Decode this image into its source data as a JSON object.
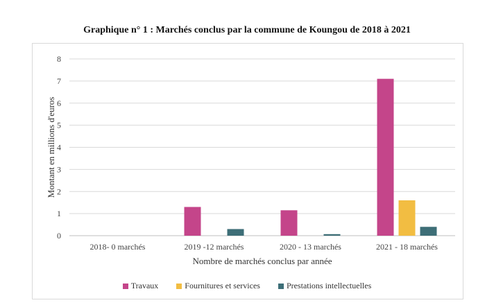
{
  "chart_data": {
    "type": "bar",
    "title": "Graphique n° 1 :  Marchés conclus par la commune de Koungou de 2018 à 2021",
    "xlabel": "Nombre de marchés conclus par année",
    "ylabel": "Montant en millions d'euros",
    "ylim": [
      0,
      8
    ],
    "yticks": [
      "0",
      "1",
      "2",
      "3",
      "4",
      "5",
      "6",
      "7",
      "8"
    ],
    "categories": [
      "2018- 0 marchés",
      "2019 -12 marchés",
      "2020 - 13 marchés",
      "2021 - 18 marchés"
    ],
    "series": [
      {
        "name": "Travaux",
        "color": "#c4458a",
        "values": [
          0,
          1.3,
          1.15,
          7.1
        ]
      },
      {
        "name": "Fournitures et services",
        "color": "#f2bd42",
        "values": [
          0,
          0,
          0,
          1.6
        ]
      },
      {
        "name": "Prestations intellectuelles",
        "color": "#3d6e77",
        "values": [
          0,
          0.3,
          0.07,
          0.4
        ]
      }
    ],
    "grid": true,
    "legend_position": "bottom"
  }
}
